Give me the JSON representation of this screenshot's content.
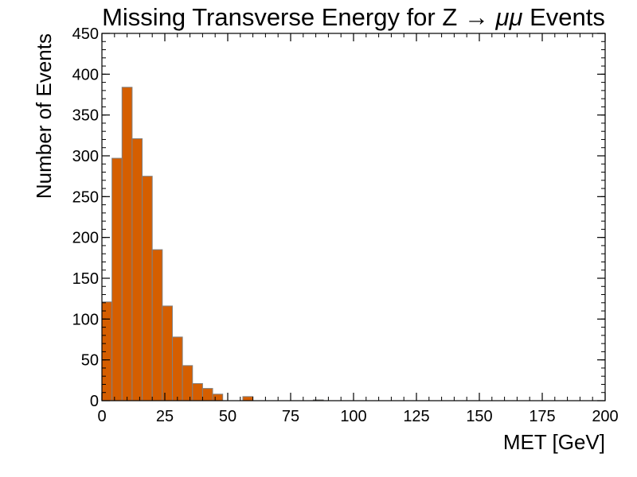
{
  "chart_data": {
    "type": "bar",
    "histogram": true,
    "title": "Missing Transverse Energy for Z → μμ Events",
    "title_main": "Missing Transverse Energy for Z →",
    "title_mu": "μμ",
    "title_end": " Events",
    "xlabel": "MET [GeV]",
    "ylabel": "Number of Events",
    "xlim": [
      0,
      200
    ],
    "ylim": [
      0,
      450
    ],
    "bin_width": 4,
    "bin_edges_start": 0,
    "values": [
      121,
      297,
      384,
      321,
      275,
      185,
      116,
      78,
      43,
      21,
      15,
      8,
      0,
      0,
      5,
      0,
      0,
      0,
      0,
      0,
      0,
      1,
      0,
      0,
      0,
      0,
      0,
      0,
      0,
      0,
      0,
      0,
      0,
      0,
      0,
      0,
      0,
      0,
      0,
      0,
      0,
      0,
      0,
      0,
      0,
      0,
      0,
      0,
      0,
      0
    ],
    "x_ticks": [
      0,
      25,
      50,
      75,
      100,
      125,
      150,
      175,
      200
    ],
    "x_tick_labels": [
      "0",
      "25",
      "50",
      "75",
      "100",
      "125",
      "150",
      "175",
      "200"
    ],
    "y_ticks": [
      0,
      50,
      100,
      150,
      200,
      250,
      300,
      350,
      400,
      450
    ],
    "y_tick_labels": [
      "0",
      "50",
      "100",
      "150",
      "200",
      "250",
      "300",
      "350",
      "400",
      "450"
    ],
    "fill_color": "#d55e00",
    "edge_color": "#808080",
    "grid": false,
    "legend": "none"
  }
}
